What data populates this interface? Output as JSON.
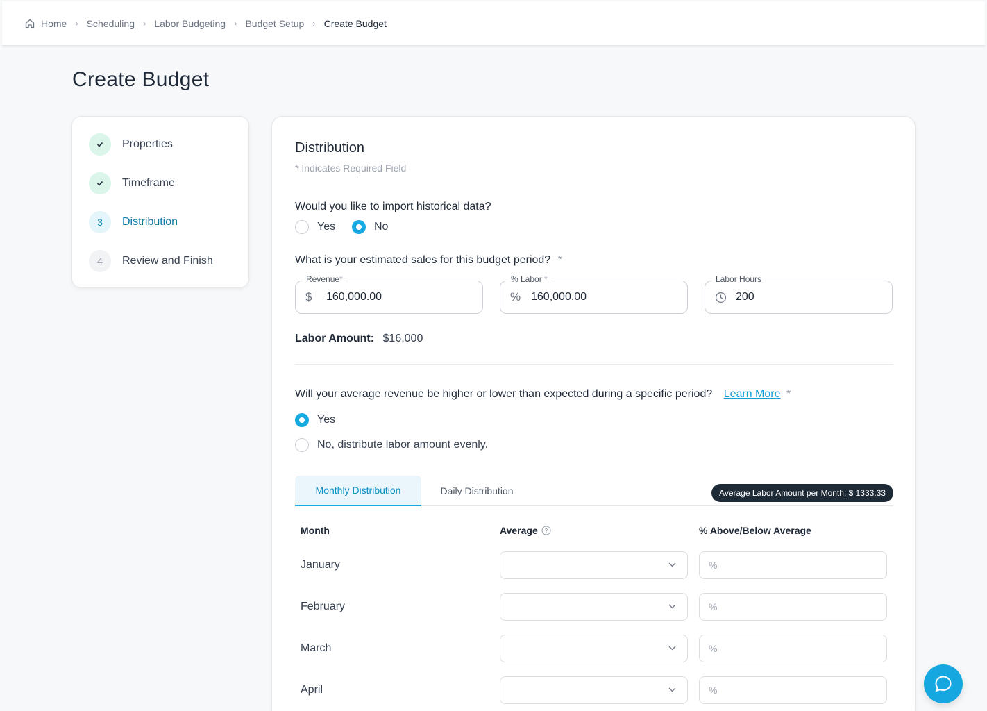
{
  "breadcrumb": {
    "items": [
      "Home",
      "Scheduling",
      "Labor Budgeting",
      "Budget Setup",
      "Create Budget"
    ]
  },
  "page_title": "Create Budget",
  "steps": [
    {
      "label": "Properties",
      "state": "done",
      "marker": ""
    },
    {
      "label": "Timeframe",
      "state": "done",
      "marker": ""
    },
    {
      "label": "Distribution",
      "state": "active",
      "marker": "3"
    },
    {
      "label": "Review and Finish",
      "state": "todo",
      "marker": "4"
    }
  ],
  "section": {
    "title": "Distribution",
    "required_note": "* Indicates Required Field"
  },
  "import_question": {
    "text": "Would you like to import historical data?",
    "options": [
      "Yes",
      "No"
    ],
    "selected": "No"
  },
  "sales_question": {
    "text": "What is your estimated sales for this budget period?",
    "required_mark": "*"
  },
  "fields": {
    "revenue": {
      "label": "Revenue",
      "required_mark": "*",
      "prefix_icon": "dollar-icon",
      "prefix": "$",
      "value": "160,000.00"
    },
    "labor_pct": {
      "label": "% Labor",
      "required_mark": "*",
      "prefix_icon": "percent-icon",
      "prefix": "%",
      "value": "160,000.00"
    },
    "labor_hours": {
      "label": "Labor Hours",
      "prefix_icon": "clock-icon",
      "value": "200"
    }
  },
  "labor_amount": {
    "label": "Labor Amount:",
    "value": "$16,000"
  },
  "period_question": {
    "text": "Will your average revenue be higher or lower than expected during a specific period?",
    "link": "Learn More",
    "required_mark": "*",
    "options": [
      "Yes",
      "No, distribute labor amount evenly."
    ],
    "selected": "Yes"
  },
  "tabs": {
    "monthly": "Monthly Distribution",
    "daily": "Daily Distribution",
    "active": "monthly",
    "summary_pill": "Average Labor Amount per Month: $ 1333.33"
  },
  "table": {
    "headers": {
      "month": "Month",
      "average": "Average",
      "above_below": "% Above/Below Average"
    },
    "percent_symbol": "%",
    "rows": [
      {
        "month": "January",
        "average": "",
        "percent": ""
      },
      {
        "month": "February",
        "average": "",
        "percent": ""
      },
      {
        "month": "March",
        "average": "",
        "percent": ""
      },
      {
        "month": "April",
        "average": "",
        "percent": ""
      }
    ]
  },
  "colors": {
    "accent": "#17a9e1",
    "done_badge": "#dcf5ea",
    "pill_bg": "#1f2a37"
  }
}
